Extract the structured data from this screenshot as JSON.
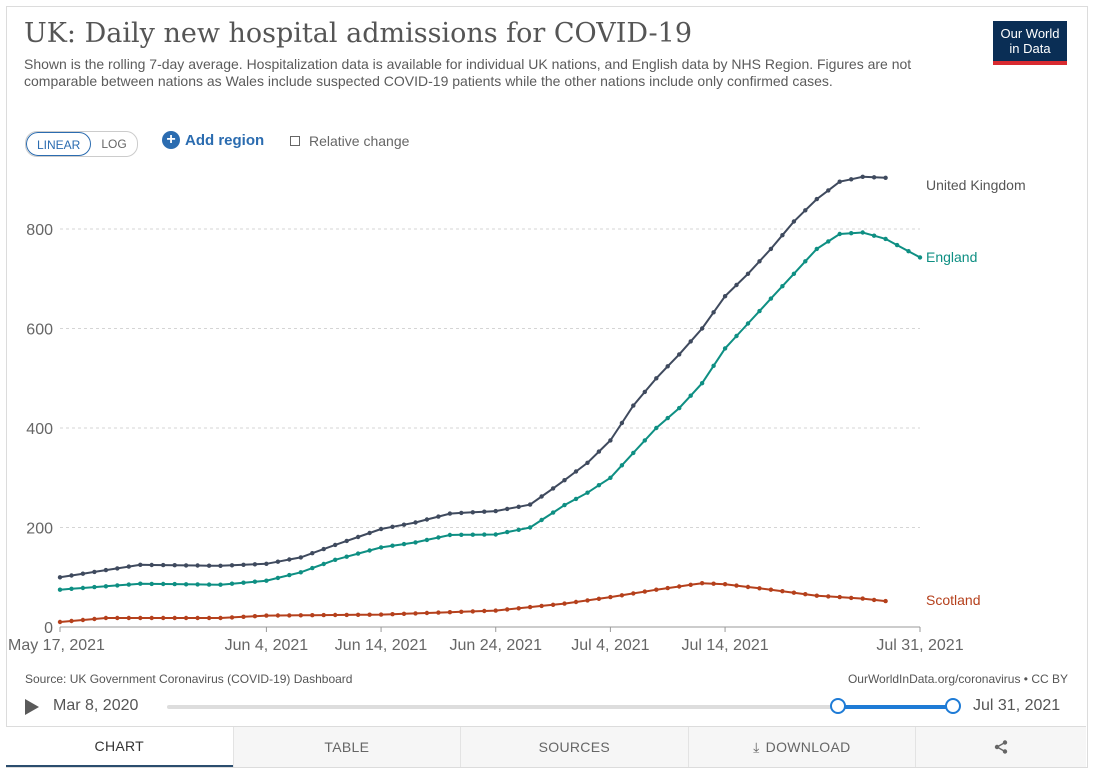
{
  "header": {
    "title": "UK: Daily new hospital admissions for COVID-19",
    "subtitle": "Shown is the rolling 7-day average. Hospitalization data is available for individual UK nations, and English data by NHS Region. Figures are not comparable between nations as Wales include suspected COVID-19 patients while the other nations include only confirmed cases.",
    "logo_line1": "Our World",
    "logo_line2": "in Data"
  },
  "controls": {
    "linear_label": "LINEAR",
    "log_label": "LOG",
    "add_region_label": "Add region",
    "relative_change_label": "Relative change"
  },
  "footer": {
    "source": "Source: UK Government Coronavirus (COVID-19) Dashboard",
    "credit": "OurWorldInData.org/coronavirus • CC BY"
  },
  "timeline": {
    "start_label": "Mar 8, 2020",
    "end_label": "Jul 31, 2021"
  },
  "tabs": {
    "chart": "CHART",
    "table": "TABLE",
    "sources": "SOURCES",
    "download": "DOWNLOAD"
  },
  "colors": {
    "uk": "#3f4a5e",
    "england": "#0e8f83",
    "scotland": "#b5401c",
    "accent": "#2b6cb0"
  },
  "chart_data": {
    "type": "line",
    "x_start": "2021-05-17",
    "x_end": "2021-07-31",
    "xlim": [
      "2021-05-17",
      "2021-07-31"
    ],
    "ylim": [
      0,
      900
    ],
    "y_ticks": [
      0,
      200,
      400,
      600,
      800
    ],
    "x_tick_labels": [
      "May 17, 2021",
      "Jun 4, 2021",
      "Jun 14, 2021",
      "Jun 24, 2021",
      "Jul 4, 2021",
      "Jul 14, 2021",
      "Jul 31, 2021"
    ],
    "x_tick_dates": [
      "2021-05-17",
      "2021-06-04",
      "2021-06-14",
      "2021-06-24",
      "2021-07-04",
      "2021-07-14",
      "2021-07-31"
    ],
    "grid": "horizontal dashed",
    "legend": "inline labels at right end of lines",
    "series": [
      {
        "name": "United Kingdom",
        "color_key": "uk",
        "dates": [
          "2021-05-17",
          "2021-05-24",
          "2021-05-31",
          "2021-06-04",
          "2021-06-07",
          "2021-06-10",
          "2021-06-14",
          "2021-06-17",
          "2021-06-20",
          "2021-06-24",
          "2021-06-27",
          "2021-06-30",
          "2021-07-02",
          "2021-07-04",
          "2021-07-06",
          "2021-07-08",
          "2021-07-10",
          "2021-07-12",
          "2021-07-14",
          "2021-07-16",
          "2021-07-18",
          "2021-07-20",
          "2021-07-22",
          "2021-07-24",
          "2021-07-26",
          "2021-07-28"
        ],
        "values": [
          100,
          125,
          123,
          127,
          140,
          165,
          197,
          210,
          228,
          233,
          246,
          295,
          330,
          375,
          445,
          500,
          548,
          600,
          665,
          710,
          760,
          815,
          860,
          895,
          905,
          903
        ]
      },
      {
        "name": "England",
        "color_key": "england",
        "dates": [
          "2021-05-17",
          "2021-05-24",
          "2021-05-31",
          "2021-06-04",
          "2021-06-07",
          "2021-06-10",
          "2021-06-14",
          "2021-06-17",
          "2021-06-20",
          "2021-06-24",
          "2021-06-27",
          "2021-06-30",
          "2021-07-02",
          "2021-07-04",
          "2021-07-06",
          "2021-07-08",
          "2021-07-10",
          "2021-07-12",
          "2021-07-14",
          "2021-07-16",
          "2021-07-18",
          "2021-07-20",
          "2021-07-22",
          "2021-07-24",
          "2021-07-26",
          "2021-07-28",
          "2021-07-31"
        ],
        "values": [
          75,
          87,
          85,
          93,
          110,
          135,
          160,
          170,
          185,
          186,
          200,
          245,
          270,
          300,
          350,
          400,
          440,
          490,
          560,
          610,
          660,
          710,
          760,
          790,
          793,
          780,
          743
        ]
      },
      {
        "name": "Scotland",
        "color_key": "scotland",
        "dates": [
          "2021-05-17",
          "2021-05-21",
          "2021-05-31",
          "2021-06-04",
          "2021-06-14",
          "2021-06-24",
          "2021-06-30",
          "2021-07-04",
          "2021-07-08",
          "2021-07-12",
          "2021-07-14",
          "2021-07-18",
          "2021-07-22",
          "2021-07-26",
          "2021-07-28"
        ],
        "values": [
          10,
          18,
          18,
          23,
          25,
          33,
          47,
          60,
          75,
          88,
          86,
          75,
          63,
          57,
          52
        ]
      }
    ]
  }
}
